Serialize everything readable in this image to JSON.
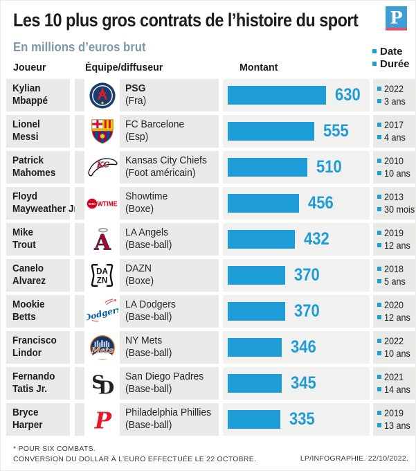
{
  "header": {
    "title": "Les 10 plus gros contrats de l’histoire du sport",
    "brand_letter": "P",
    "subtitle": "En millions d’euros brut"
  },
  "legend": {
    "date": "Date",
    "duration": "Durée"
  },
  "table_headers": {
    "player": "Joueur",
    "team": "Équipe/diffuseur",
    "amount": "Montant"
  },
  "chart_data": {
    "type": "bar",
    "title": "Les 10 plus gros contrats de l’histoire du sport",
    "unit": "millions d'euros brut",
    "xlim": [
      0,
      630
    ],
    "bar_color": "#1e9cd7",
    "rows": [
      {
        "player": "Kylian Mbappé",
        "player_line1": "Kylian",
        "player_line2": "Mbappé",
        "team": "PSG",
        "team_note": "(Fra)",
        "team_bold": true,
        "logo": "psg",
        "value": 630,
        "date": "2022",
        "duration": "3 ans"
      },
      {
        "player": "Lionel Messi",
        "player_line1": "Lionel",
        "player_line2": "Messi",
        "team": "FC Barcelone",
        "team_note": "(Esp)",
        "team_bold": false,
        "logo": "barca",
        "value": 555,
        "date": "2017",
        "duration": "4 ans"
      },
      {
        "player": "Patrick Mahomes",
        "player_line1": "Patrick",
        "player_line2": "Mahomes",
        "team": "Kansas City Chiefs",
        "team_note": "(Foot américain)",
        "team_bold": false,
        "logo": "chiefs",
        "value": 510,
        "date": "2010",
        "duration": "10 ans"
      },
      {
        "player": "Floyd Mayweather Jr.",
        "player_line1": "Floyd",
        "player_line2": "Mayweather Jr.",
        "team": "Showtime",
        "team_note": "(Boxe)",
        "team_bold": false,
        "logo": "showtime",
        "value": 456,
        "date": "2013",
        "duration": "30 mois*"
      },
      {
        "player": "Mike Trout",
        "player_line1": "Mike",
        "player_line2": "Trout",
        "team": "LA Angels",
        "team_note": "(Base-ball)",
        "team_bold": false,
        "logo": "angels",
        "value": 432,
        "date": "2019",
        "duration": "12 ans"
      },
      {
        "player": "Canelo Alvarez",
        "player_line1": "Canelo",
        "player_line2": "Alvarez",
        "team": "DAZN",
        "team_note": "(Boxe)",
        "team_bold": false,
        "logo": "dazn",
        "value": 370,
        "date": "2018",
        "duration": "5 ans"
      },
      {
        "player": "Mookie Betts",
        "player_line1": "Mookie",
        "player_line2": "Betts",
        "team": "LA Dodgers",
        "team_note": "(Base-ball)",
        "team_bold": false,
        "logo": "dodgers",
        "value": 370,
        "date": "2020",
        "duration": "12 ans"
      },
      {
        "player": "Francisco Lindor",
        "player_line1": "Francisco",
        "player_line2": "Lindor",
        "team": "NY Mets",
        "team_note": "(Base-ball)",
        "team_bold": false,
        "logo": "mets",
        "value": 346,
        "date": "2022",
        "duration": "10 ans"
      },
      {
        "player": "Fernando Tatis Jr.",
        "player_line1": "Fernando",
        "player_line2": "Tatis Jr.",
        "team": "San Diego Padres",
        "team_note": "(Base-ball)",
        "team_bold": false,
        "logo": "padres",
        "value": 345,
        "date": "2021",
        "duration": "14 ans"
      },
      {
        "player": "Bryce Harper",
        "player_line1": "Bryce",
        "player_line2": "Harper",
        "team": "Philadelphia Phillies",
        "team_note": "(Base-ball)",
        "team_bold": false,
        "logo": "phillies",
        "value": 335,
        "date": "2019",
        "duration": "13 ans"
      }
    ]
  },
  "footer": {
    "note1": "* POUR SIX COMBATS.",
    "note2": "CONVERSION DU DOLLAR À L’EURO EFFECTUÉE LE 22 OCTOBRE.",
    "credit": "LP/INFOGRAPHIE.  22/10/2022."
  },
  "colors": {
    "bar": "#1e9cd7",
    "accent_bullet": "#1e9cd7",
    "subtitle": "#7d98a6",
    "row_background": "#e9e9e8",
    "bar_track_background": "#f1f1ef",
    "brand_blue": "#3f9ed8",
    "brand_red": "#e0516b",
    "text": "#1d1d1b"
  }
}
